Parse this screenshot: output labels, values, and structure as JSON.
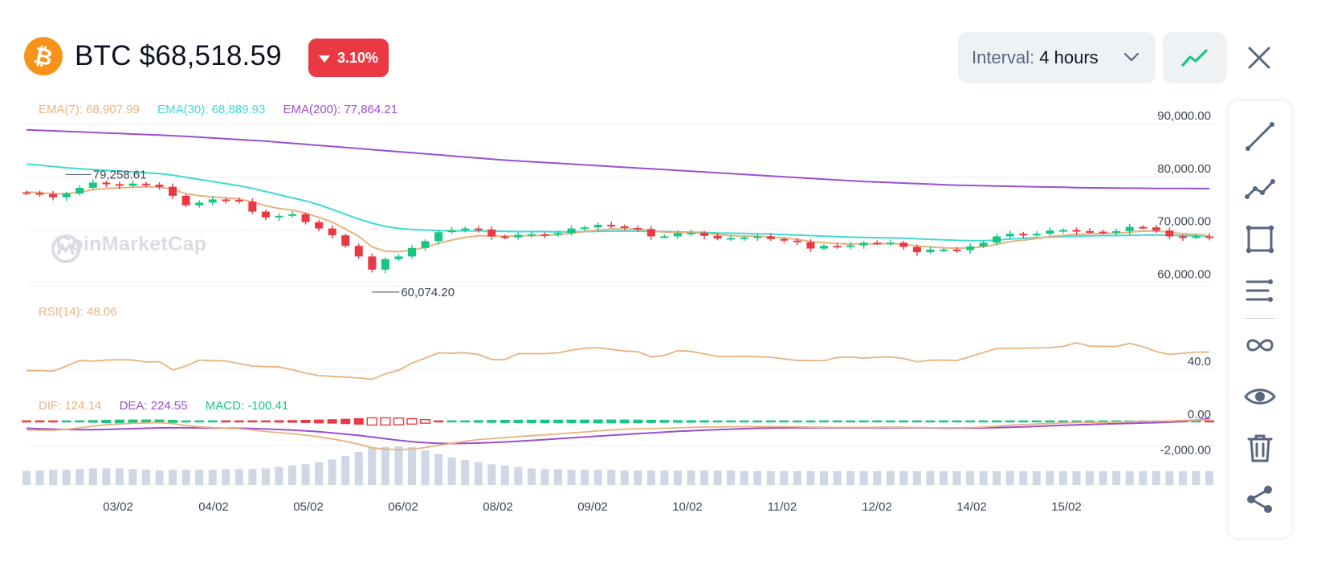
{
  "header": {
    "symbol": "BTC",
    "price": "$68,518.59",
    "change_pct": "3.10%",
    "change_direction": "down",
    "coin_icon": "bitcoin-icon",
    "brand_color": "#f7931a",
    "down_color": "#ea3943",
    "up_color": "#16c784"
  },
  "interval": {
    "label": "Interval:",
    "value": "4 hours"
  },
  "controls": {
    "chart_type_icon": "line-chart-icon",
    "close_icon": "close-icon"
  },
  "legend": {
    "ema7": "EMA(7): 68,907.99",
    "ema30": "EMA(30): 68,889.93",
    "ema200": "EMA(200): 77,864.21",
    "rsi": "RSI(14): 48.06",
    "dif": "DIF: 124.14",
    "dea": "DEA: 224.55",
    "macd": "MACD: -100.41"
  },
  "watermark": "CoinMarketCap",
  "toolbar": [
    {
      "icon": "trend-line-icon"
    },
    {
      "icon": "polyline-icon"
    },
    {
      "icon": "rectangle-icon"
    },
    {
      "icon": "fibonacci-icon"
    },
    {
      "icon": "magnet-icon"
    },
    {
      "icon": "visibility-eye-icon"
    },
    {
      "icon": "delete-trash-icon"
    },
    {
      "icon": "share-icon"
    }
  ],
  "chart_data": {
    "type": "candlestick",
    "x_tick_labels": [
      "03/02",
      "04/02",
      "05/02",
      "06/02",
      "08/02",
      "09/02",
      "10/02",
      "11/02",
      "12/02",
      "14/02",
      "15/02"
    ],
    "price_axis": {
      "ticks": [
        90000,
        80000,
        70000,
        60000
      ],
      "tick_labels": [
        "90,000.00",
        "80,000.00",
        "70,000.00",
        "60,000.00"
      ],
      "range": [
        57000,
        92000
      ]
    },
    "annotations": {
      "high_label": "79,258.61",
      "low_label": "60,074.20"
    },
    "candles_close": [
      77000,
      76800,
      76200,
      76900,
      78000,
      79000,
      78700,
      78400,
      78800,
      78600,
      78200,
      76500,
      74700,
      75200,
      75800,
      75700,
      75400,
      73500,
      72400,
      72700,
      73000,
      71500,
      70300,
      69000,
      67000,
      65000,
      62500,
      64500,
      65000,
      66600,
      67900,
      69600,
      70000,
      70300,
      70100,
      68800,
      68600,
      69100,
      69200,
      69100,
      69400,
      70300,
      70500,
      71000,
      70700,
      70400,
      70200,
      68800,
      68800,
      69400,
      69500,
      68900,
      68400,
      68500,
      68600,
      68800,
      68300,
      68000,
      67700,
      66500,
      67000,
      66900,
      67100,
      67600,
      67500,
      67600,
      66800,
      65800,
      66300,
      66300,
      66200,
      66900,
      67600,
      68800,
      69300,
      69100,
      69300,
      69900,
      70000,
      69800,
      69700,
      69600,
      69800,
      70600,
      70500,
      69900,
      68800,
      68600,
      68800,
      68500
    ],
    "ema7": [
      77200,
      77100,
      76900,
      76900,
      77200,
      77650,
      77900,
      78000,
      78100,
      78200,
      78150,
      77700,
      76900,
      76500,
      76300,
      76100,
      75900,
      75300,
      74600,
      74100,
      73800,
      73200,
      72400,
      71500,
      70200,
      68800,
      66800,
      66000,
      65900,
      66200,
      66700,
      67500,
      68100,
      68600,
      68900,
      68900,
      68800,
      68900,
      68950,
      69000,
      69100,
      69400,
      69700,
      70000,
      70200,
      70200,
      70200,
      69900,
      69600,
      69550,
      69500,
      69400,
      69150,
      68950,
      68850,
      68850,
      68700,
      68500,
      68250,
      67800,
      67600,
      67450,
      67350,
      67400,
      67400,
      67450,
      67300,
      66950,
      66800,
      66650,
      66550,
      66600,
      66850,
      67300,
      67800,
      68100,
      68400,
      68750,
      69000,
      69200,
      69300,
      69350,
      69400,
      69600,
      69800,
      69800,
      69600,
      69300,
      69200,
      68900
    ],
    "ema30": [
      82500,
      82300,
      82050,
      81800,
      81600,
      81450,
      81300,
      81150,
      81000,
      80850,
      80700,
      80400,
      80000,
      79600,
      79200,
      78800,
      78400,
      77900,
      77300,
      76700,
      76100,
      75500,
      74800,
      73900,
      73000,
      72100,
      71300,
      70700,
      70300,
      70100,
      70000,
      69900,
      69850,
      69850,
      69850,
      69800,
      69750,
      69700,
      69700,
      69700,
      69650,
      69650,
      69700,
      69750,
      69800,
      69800,
      69800,
      69750,
      69700,
      69650,
      69600,
      69550,
      69450,
      69400,
      69350,
      69300,
      69250,
      69150,
      69050,
      68950,
      68850,
      68750,
      68650,
      68600,
      68550,
      68500,
      68450,
      68350,
      68250,
      68150,
      68050,
      68000,
      68000,
      68100,
      68300,
      68450,
      68550,
      68650,
      68750,
      68850,
      68900,
      68950,
      68950,
      69000,
      69050,
      69050,
      69000,
      68950,
      68900,
      68890
    ],
    "ema200": [
      89000,
      88900,
      88800,
      88700,
      88600,
      88500,
      88400,
      88300,
      88200,
      88100,
      88000,
      87880,
      87750,
      87600,
      87450,
      87300,
      87150,
      87000,
      86850,
      86650,
      86450,
      86250,
      86050,
      85850,
      85650,
      85450,
      85250,
      85050,
      84850,
      84650,
      84450,
      84250,
      84050,
      83850,
      83650,
      83450,
      83250,
      83100,
      82950,
      82800,
      82650,
      82500,
      82350,
      82200,
      82050,
      81900,
      81750,
      81600,
      81450,
      81300,
      81150,
      81000,
      80850,
      80700,
      80550,
      80400,
      80250,
      80100,
      79950,
      79800,
      79650,
      79500,
      79350,
      79200,
      79100,
      79000,
      78900,
      78800,
      78700,
      78600,
      78500,
      78450,
      78400,
      78350,
      78300,
      78250,
      78200,
      78150,
      78100,
      78050,
      78000,
      77980,
      77960,
      77940,
      77920,
      77900,
      77890,
      77880,
      77870,
      77864
    ],
    "rsi_axis": {
      "tick": 40.0,
      "tick_label": "40.0",
      "range": [
        30,
        65
      ]
    },
    "rsi": [
      38,
      38,
      37.8,
      40.5,
      43.5,
      43.2,
      43.8,
      43.9,
      43.8,
      42.7,
      42.9,
      38.4,
      40.5,
      43.8,
      43.4,
      43.3,
      41.8,
      40.5,
      40.2,
      40,
      38.5,
      36.7,
      35.3,
      34.9,
      34.5,
      34,
      33.3,
      36.3,
      38.2,
      42.1,
      44.8,
      47.7,
      47.5,
      47.8,
      46.8,
      44.1,
      44,
      47.3,
      47.3,
      47.3,
      47.7,
      49.2,
      50.2,
      50.5,
      49.6,
      48.7,
      48.3,
      45.5,
      46.3,
      48.9,
      48.5,
      47.2,
      45.7,
      45.7,
      45.9,
      45.6,
      45.3,
      44.4,
      43.5,
      43.5,
      43.4,
      45.2,
      45.4,
      44.8,
      45.3,
      45.5,
      44.6,
      42.8,
      43.7,
      43.8,
      43.5,
      45.6,
      47.9,
      50,
      50.3,
      50.2,
      50.4,
      50.5,
      51.2,
      53.2,
      51.4,
      51.2,
      51.2,
      52.9,
      51.1,
      48.4,
      46.8,
      47.5,
      48.1,
      48.1
    ],
    "macd_axis": {
      "ticks": [
        0,
        -2000
      ],
      "tick_labels": [
        "0.00",
        "-2,000.00"
      ],
      "range": [
        -3600,
        650
      ]
    },
    "dif": [
      -700,
      -720,
      -720,
      -650,
      -520,
      -380,
      -280,
      -210,
      -160,
      -120,
      -100,
      -180,
      -330,
      -440,
      -510,
      -560,
      -600,
      -700,
      -820,
      -920,
      -1000,
      -1120,
      -1260,
      -1420,
      -1620,
      -1860,
      -2150,
      -2250,
      -2300,
      -2250,
      -2130,
      -1950,
      -1780,
      -1620,
      -1480,
      -1400,
      -1320,
      -1230,
      -1160,
      -1090,
      -1020,
      -940,
      -860,
      -770,
      -700,
      -640,
      -590,
      -580,
      -560,
      -520,
      -480,
      -460,
      -450,
      -440,
      -430,
      -420,
      -420,
      -430,
      -440,
      -470,
      -480,
      -490,
      -490,
      -490,
      -480,
      -470,
      -480,
      -510,
      -520,
      -520,
      -520,
      -500,
      -460,
      -390,
      -310,
      -260,
      -210,
      -170,
      -130,
      -100,
      -90,
      -80,
      -60,
      -20,
      0,
      20,
      40,
      90,
      110,
      124
    ],
    "dea": [
      -560,
      -600,
      -630,
      -660,
      -670,
      -670,
      -650,
      -620,
      -590,
      -560,
      -530,
      -520,
      -520,
      -530,
      -540,
      -550,
      -560,
      -580,
      -620,
      -660,
      -710,
      -770,
      -840,
      -930,
      -1030,
      -1140,
      -1270,
      -1410,
      -1540,
      -1650,
      -1730,
      -1780,
      -1800,
      -1790,
      -1760,
      -1720,
      -1670,
      -1610,
      -1550,
      -1480,
      -1410,
      -1340,
      -1270,
      -1200,
      -1130,
      -1060,
      -990,
      -930,
      -870,
      -810,
      -760,
      -710,
      -670,
      -630,
      -590,
      -560,
      -540,
      -530,
      -520,
      -520,
      -520,
      -520,
      -520,
      -520,
      -520,
      -520,
      -520,
      -520,
      -530,
      -540,
      -540,
      -540,
      -530,
      -510,
      -480,
      -440,
      -400,
      -360,
      -320,
      -280,
      -250,
      -220,
      -190,
      -160,
      -130,
      -100,
      -60,
      -10,
      110,
      225
    ],
    "volume": [
      20,
      21,
      22,
      22,
      23,
      24,
      24,
      24,
      23,
      22,
      21,
      22,
      22,
      22,
      22,
      23,
      23,
      23,
      24,
      26,
      28,
      30,
      33,
      37,
      42,
      48,
      54,
      55,
      56,
      55,
      50,
      45,
      40,
      36,
      33,
      30,
      28,
      26,
      24,
      23,
      23,
      22,
      22,
      22,
      22,
      21,
      21,
      21,
      21,
      21,
      21,
      21,
      21,
      21,
      20,
      20,
      20,
      20,
      20,
      20,
      20,
      20,
      20,
      20,
      20,
      20,
      20,
      20,
      20,
      20,
      20,
      20,
      20,
      20,
      20,
      20,
      20,
      20,
      20,
      20,
      20,
      20,
      20,
      20,
      20,
      20,
      20,
      20,
      20,
      20
    ]
  }
}
